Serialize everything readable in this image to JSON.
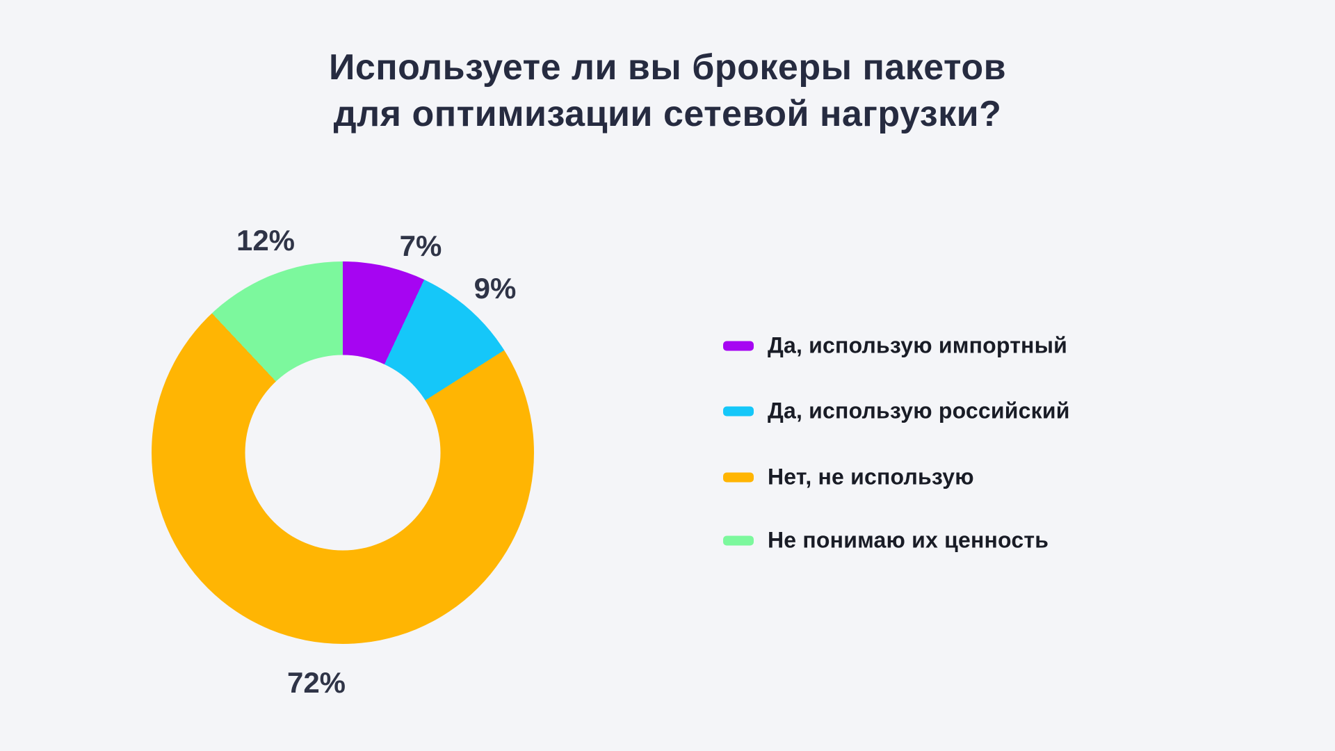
{
  "page": {
    "background": "#F4F5F8"
  },
  "title": {
    "line1": "Используете ли вы брокеры пакетов",
    "line2": "для оптимизации сетевой нагрузки?",
    "color": "#262B40"
  },
  "chart_data": {
    "type": "pie",
    "subtype": "donut",
    "title": "Используете ли вы брокеры пакетов для оптимизации сетевой нагрузки?",
    "categories": [
      "Да, использую импортный",
      "Да, использую российский",
      "Нет, не использую",
      "Не понимаю их ценность"
    ],
    "values": [
      7,
      9,
      72,
      12
    ],
    "unit": "%",
    "labels": [
      "7%",
      "9%",
      "72%",
      "12%"
    ],
    "colors": [
      "#A605F2",
      "#15C7F9",
      "#FFB503",
      "#7CF89D"
    ],
    "start_angle_deg": 0,
    "direction": "clockwise",
    "inner_radius_ratio": 0.51,
    "legend_position": "right",
    "label_color": "#2F3447",
    "grid": false
  },
  "legend": {
    "text_color": "#191C26",
    "items": [
      {
        "label": "Да, использую импортный",
        "color": "#A605F2"
      },
      {
        "label": "Да, использую российский",
        "color": "#15C7F9"
      },
      {
        "label": "Нет, не использую",
        "color": "#FFB503"
      },
      {
        "label": "Не понимаю их ценность",
        "color": "#7CF89D"
      }
    ]
  }
}
